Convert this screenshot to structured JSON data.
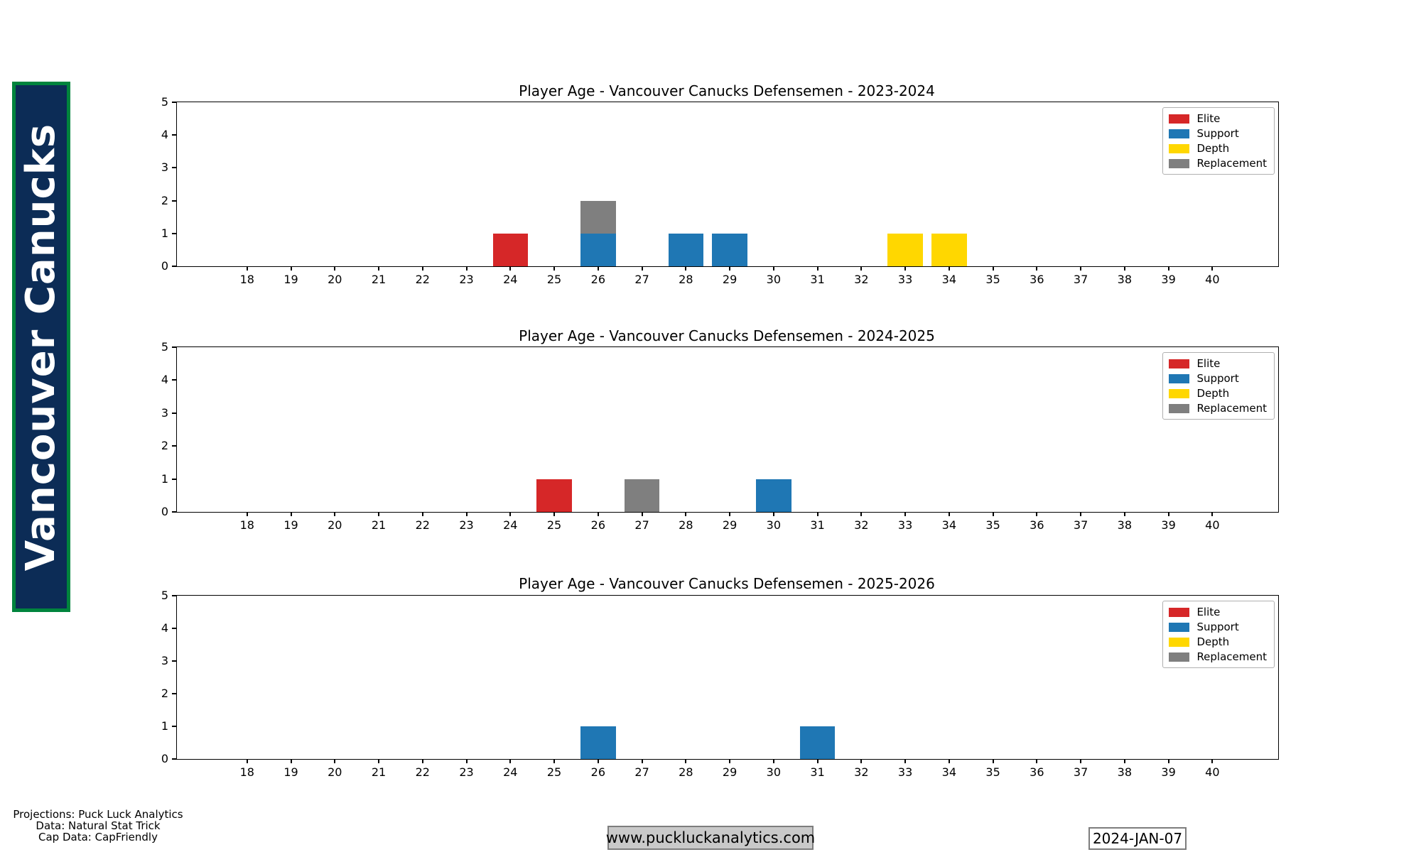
{
  "banner": {
    "text": "Vancouver Canucks",
    "bg_color": "#0c2c56",
    "border_color": "#00843d",
    "text_color": "#ffffff"
  },
  "category_colors": {
    "Elite": "#d62728",
    "Support": "#1f77b4",
    "Depth": "#ffd700",
    "Replacement": "#7f7f7f"
  },
  "legend": {
    "position": "upper right",
    "entries": [
      {
        "label": "Elite",
        "color": "#d62728"
      },
      {
        "label": "Support",
        "color": "#1f77b4"
      },
      {
        "label": "Depth",
        "color": "#ffd700"
      },
      {
        "label": "Replacement",
        "color": "#7f7f7f"
      }
    ]
  },
  "chart_data": [
    {
      "type": "bar",
      "title": "Player Age - Vancouver Canucks Defensemen - 2023-2024",
      "xlabel": "",
      "ylabel": "",
      "xlim": [
        16.4,
        41.5
      ],
      "ylim": [
        0,
        5
      ],
      "xticks": [
        18,
        19,
        20,
        21,
        22,
        23,
        24,
        25,
        26,
        27,
        28,
        29,
        30,
        31,
        32,
        33,
        34,
        35,
        36,
        37,
        38,
        39,
        40
      ],
      "yticks": [
        0,
        1,
        2,
        3,
        4,
        5
      ],
      "grid": false,
      "bar_width": 0.8,
      "legend_position": "upper right",
      "series": [
        {
          "name": "Elite",
          "bars": [
            {
              "age": 24,
              "count": 1,
              "base": 0
            }
          ]
        },
        {
          "name": "Support",
          "bars": [
            {
              "age": 26,
              "count": 1,
              "base": 0
            },
            {
              "age": 28,
              "count": 1,
              "base": 0
            },
            {
              "age": 29,
              "count": 1,
              "base": 0
            }
          ]
        },
        {
          "name": "Depth",
          "bars": [
            {
              "age": 33,
              "count": 1,
              "base": 0
            },
            {
              "age": 34,
              "count": 1,
              "base": 0
            }
          ]
        },
        {
          "name": "Replacement",
          "bars": [
            {
              "age": 26,
              "count": 1,
              "base": 1
            }
          ]
        }
      ]
    },
    {
      "type": "bar",
      "title": "Player Age - Vancouver Canucks Defensemen - 2024-2025",
      "xlabel": "",
      "ylabel": "",
      "xlim": [
        16.4,
        41.5
      ],
      "ylim": [
        0,
        5
      ],
      "xticks": [
        18,
        19,
        20,
        21,
        22,
        23,
        24,
        25,
        26,
        27,
        28,
        29,
        30,
        31,
        32,
        33,
        34,
        35,
        36,
        37,
        38,
        39,
        40
      ],
      "yticks": [
        0,
        1,
        2,
        3,
        4,
        5
      ],
      "grid": false,
      "bar_width": 0.8,
      "legend_position": "upper right",
      "series": [
        {
          "name": "Elite",
          "bars": [
            {
              "age": 25,
              "count": 1,
              "base": 0
            }
          ]
        },
        {
          "name": "Support",
          "bars": [
            {
              "age": 30,
              "count": 1,
              "base": 0
            }
          ]
        },
        {
          "name": "Depth",
          "bars": []
        },
        {
          "name": "Replacement",
          "bars": [
            {
              "age": 27,
              "count": 1,
              "base": 0
            }
          ]
        }
      ]
    },
    {
      "type": "bar",
      "title": "Player Age - Vancouver Canucks Defensemen - 2025-2026",
      "xlabel": "",
      "ylabel": "",
      "xlim": [
        16.4,
        41.5
      ],
      "ylim": [
        0,
        5
      ],
      "xticks": [
        18,
        19,
        20,
        21,
        22,
        23,
        24,
        25,
        26,
        27,
        28,
        29,
        30,
        31,
        32,
        33,
        34,
        35,
        36,
        37,
        38,
        39,
        40
      ],
      "yticks": [
        0,
        1,
        2,
        3,
        4,
        5
      ],
      "grid": false,
      "bar_width": 0.8,
      "legend_position": "upper right",
      "series": [
        {
          "name": "Elite",
          "bars": []
        },
        {
          "name": "Support",
          "bars": [
            {
              "age": 26,
              "count": 1,
              "base": 0
            },
            {
              "age": 31,
              "count": 1,
              "base": 0
            }
          ]
        },
        {
          "name": "Depth",
          "bars": []
        },
        {
          "name": "Replacement",
          "bars": []
        }
      ]
    }
  ],
  "footer": {
    "credits": [
      "Projections: Puck Luck Analytics",
      "Data: Natural Stat Trick",
      "Cap Data: CapFriendly"
    ],
    "website": "www.puckluckanalytics.com",
    "date": "2024-JAN-07"
  }
}
